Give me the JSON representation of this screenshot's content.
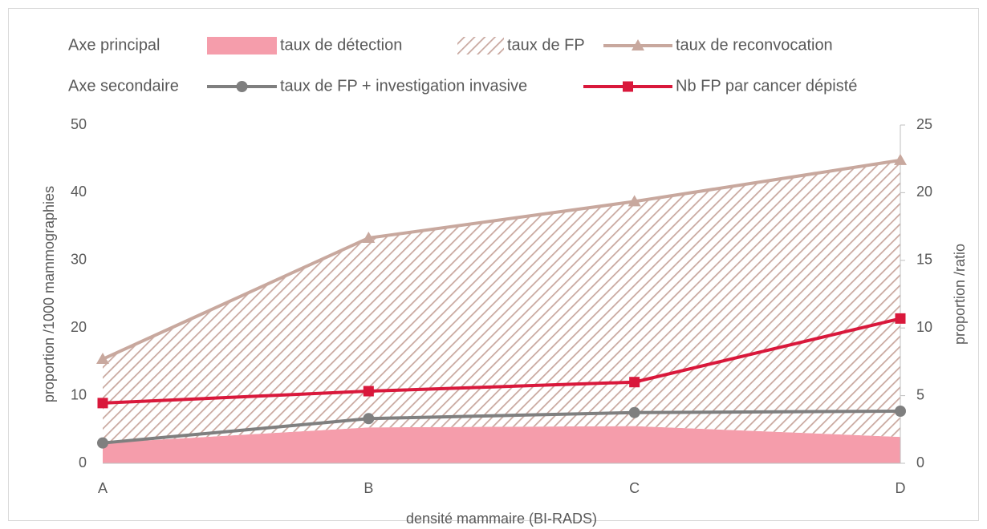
{
  "chart_data": {
    "type": "line",
    "legend_titles": [
      "Axe principal",
      "Axe secondaire"
    ],
    "xlabel": "densité mammaire (BI-RADS)",
    "ylabel": "proportion /1000 mammographies",
    "y2label": "proportion /ratio",
    "categories": [
      "A",
      "B",
      "C",
      "D"
    ],
    "ylim": [
      0,
      50
    ],
    "yticks": [
      0,
      10,
      20,
      30,
      40,
      50
    ],
    "y2lim": [
      0,
      25
    ],
    "y2ticks": [
      0,
      5,
      10,
      15,
      20,
      25
    ],
    "series": [
      {
        "name": "taux de détection",
        "kind": "area",
        "color": "#f59dab",
        "values": [
          3.0,
          5.3,
          5.5,
          3.9
        ]
      },
      {
        "name": "taux de FP",
        "kind": "area",
        "stacked": true,
        "pattern": "hatch",
        "color": "#c9a89f",
        "values": [
          12.4,
          28.0,
          33.2,
          40.9
        ]
      },
      {
        "name": "taux de reconvocation",
        "kind": "line",
        "marker": "triangle",
        "color": "#c8a89e",
        "values": [
          15.4,
          33.3,
          38.7,
          44.8
        ]
      },
      {
        "name": "taux de FP + investigation invasive",
        "kind": "line",
        "marker": "circle",
        "axis": "y2",
        "color": "#7f7f7f",
        "values": [
          1.5,
          3.3,
          3.75,
          3.85
        ]
      },
      {
        "name": "Nb FP par cancer dépisté",
        "kind": "line",
        "marker": "square",
        "axis": "y2",
        "color": "#d9183b",
        "values": [
          4.45,
          5.33,
          6.0,
          10.7
        ]
      }
    ]
  }
}
